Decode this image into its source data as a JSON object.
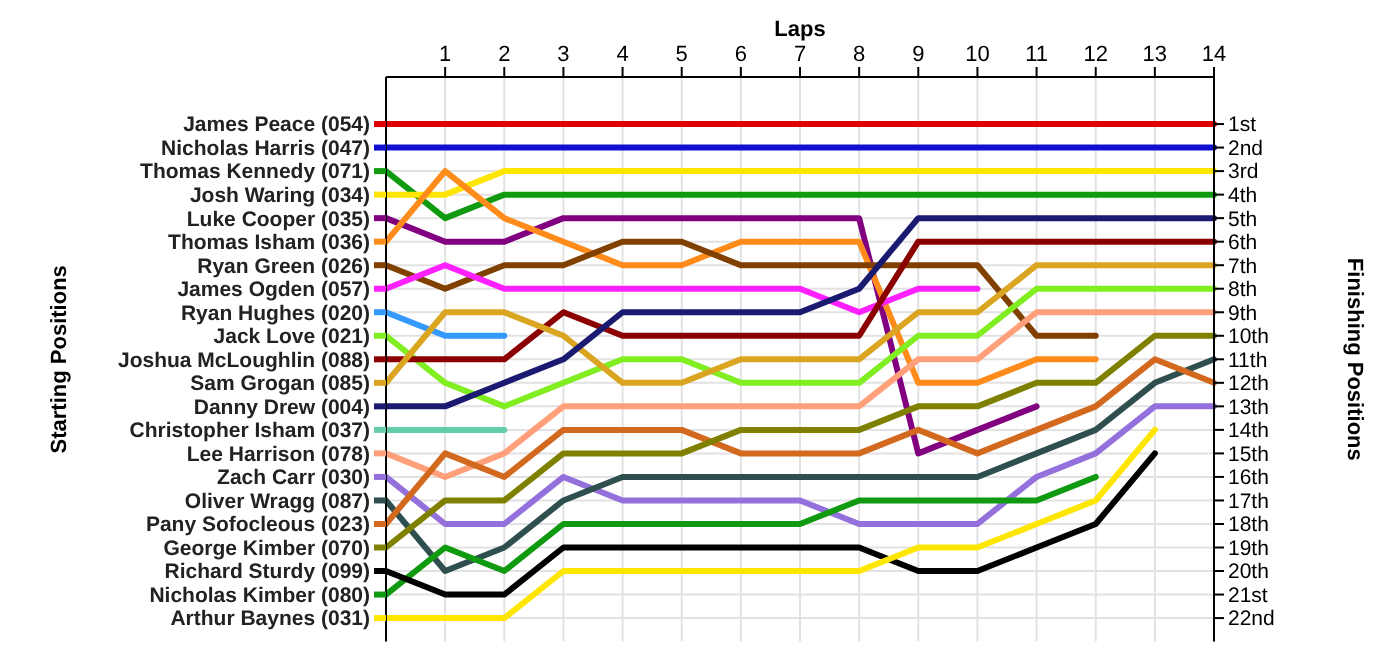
{
  "chart_data": {
    "type": "line",
    "xlabel": "Laps",
    "annotations": [
      "Starting Positions"
    ],
    "y2label": "Finishing Positions",
    "x": [
      0,
      1,
      2,
      3,
      4,
      5,
      6,
      7,
      8,
      9,
      10,
      11,
      12,
      13,
      14
    ],
    "xlim": [
      0,
      14
    ],
    "xticks": [
      1,
      2,
      3,
      4,
      5,
      6,
      7,
      8,
      9,
      10,
      11,
      12,
      13,
      14
    ],
    "y2lim": [
      23,
      -1
    ],
    "y2ticks": [
      {
        "value": 1,
        "label": "1st"
      },
      {
        "value": 2,
        "label": "2nd"
      },
      {
        "value": 3,
        "label": "3rd"
      },
      {
        "value": 4,
        "label": "4th"
      },
      {
        "value": 5,
        "label": "5th"
      },
      {
        "value": 6,
        "label": "6th"
      },
      {
        "value": 7,
        "label": "7th"
      },
      {
        "value": 8,
        "label": "8th"
      },
      {
        "value": 9,
        "label": "9th"
      },
      {
        "value": 10,
        "label": "10th"
      },
      {
        "value": 11,
        "label": "11th"
      },
      {
        "value": 12,
        "label": "12th"
      },
      {
        "value": 13,
        "label": "13th"
      },
      {
        "value": 14,
        "label": "14th"
      },
      {
        "value": 15,
        "label": "15th"
      },
      {
        "value": 16,
        "label": "16th"
      },
      {
        "value": 17,
        "label": "17th"
      },
      {
        "value": 18,
        "label": "18th"
      },
      {
        "value": 19,
        "label": "19th"
      },
      {
        "value": 20,
        "label": "20th"
      },
      {
        "value": 21,
        "label": "21st"
      },
      {
        "value": 22,
        "label": "22nd"
      }
    ],
    "grid": true,
    "legend": "left",
    "marker": "none",
    "line_style": "solid",
    "series": [
      {
        "name": "James Peace (054)",
        "axis": "y2",
        "color": "#e00000",
        "values": [
          1,
          1,
          1,
          1,
          1,
          1,
          1,
          1,
          1,
          1,
          1,
          1,
          1,
          1,
          1
        ]
      },
      {
        "name": "Nicholas Harris (047)",
        "axis": "y2",
        "color": "#1010d0",
        "values": [
          2,
          2,
          2,
          2,
          2,
          2,
          2,
          2,
          2,
          2,
          2,
          2,
          2,
          2,
          2
        ]
      },
      {
        "name": "Thomas Kennedy (071)",
        "axis": "y2",
        "color": "#109a10",
        "values": [
          3,
          5,
          4,
          4,
          4,
          4,
          4,
          4,
          4,
          4,
          4,
          4,
          4,
          4,
          4
        ]
      },
      {
        "name": "Josh Waring (034)",
        "axis": "y2",
        "color": "#ffe600",
        "values": [
          4,
          4,
          3,
          3,
          3,
          3,
          3,
          3,
          3,
          3,
          3,
          3,
          3,
          3,
          3
        ]
      },
      {
        "name": "Luke Cooper (035)",
        "axis": "y2",
        "color": "#800080",
        "values": [
          5,
          6,
          6,
          5,
          5,
          5,
          5,
          5,
          5,
          15,
          14,
          13,
          null,
          null,
          null
        ]
      },
      {
        "name": "Thomas Isham (036)",
        "axis": "y2",
        "color": "#ff8c1a",
        "values": [
          6,
          3,
          5,
          6,
          7,
          7,
          6,
          6,
          6,
          12,
          12,
          11,
          11,
          null,
          null
        ]
      },
      {
        "name": "Ryan Green (026)",
        "axis": "y2",
        "color": "#804000",
        "values": [
          7,
          8,
          7,
          7,
          6,
          6,
          7,
          7,
          7,
          7,
          7,
          10,
          10,
          null,
          null
        ]
      },
      {
        "name": "James Ogden (057)",
        "axis": "y2",
        "color": "#ff20ff",
        "values": [
          8,
          7,
          8,
          8,
          8,
          8,
          8,
          8,
          9,
          8,
          8,
          null,
          null,
          null,
          null
        ]
      },
      {
        "name": "Ryan Hughes (020)",
        "axis": "y2",
        "color": "#3399ff",
        "values": [
          9,
          10,
          10,
          null,
          null,
          null,
          null,
          null,
          null,
          null,
          null,
          null,
          null,
          null,
          null
        ]
      },
      {
        "name": "Jack Love (021)",
        "axis": "y2",
        "color": "#80ee20",
        "values": [
          10,
          12,
          13,
          12,
          11,
          11,
          12,
          12,
          12,
          10,
          10,
          8,
          8,
          8,
          8
        ]
      },
      {
        "name": "Joshua McLoughlin (088)",
        "axis": "y2",
        "color": "#8b0000",
        "values": [
          11,
          11,
          11,
          9,
          10,
          10,
          10,
          10,
          10,
          6,
          6,
          6,
          6,
          6,
          6
        ]
      },
      {
        "name": "Sam Grogan (085)",
        "axis": "y2",
        "color": "#daa520",
        "values": [
          12,
          9,
          9,
          10,
          12,
          12,
          11,
          11,
          11,
          9,
          9,
          7,
          7,
          7,
          7
        ]
      },
      {
        "name": "Danny Drew (004)",
        "axis": "y2",
        "color": "#1a1a70",
        "values": [
          13,
          13,
          12,
          11,
          9,
          9,
          9,
          9,
          8,
          5,
          5,
          5,
          5,
          5,
          5
        ]
      },
      {
        "name": "Christopher Isham (037)",
        "axis": "y2",
        "color": "#66cdaa",
        "values": [
          14,
          14,
          14,
          null,
          null,
          null,
          null,
          null,
          null,
          null,
          null,
          null,
          null,
          null,
          null
        ]
      },
      {
        "name": "Lee Harrison (078)",
        "axis": "y2",
        "color": "#ffa07a",
        "values": [
          15,
          16,
          15,
          13,
          13,
          13,
          13,
          13,
          13,
          11,
          11,
          9,
          9,
          9,
          9
        ]
      },
      {
        "name": "Zach Carr (030)",
        "axis": "y2",
        "color": "#9370db",
        "values": [
          16,
          18,
          18,
          16,
          17,
          17,
          17,
          17,
          18,
          18,
          18,
          16,
          15,
          13,
          13
        ]
      },
      {
        "name": "Oliver Wragg (087)",
        "axis": "y2",
        "color": "#2f4f4f",
        "values": [
          17,
          20,
          19,
          17,
          16,
          16,
          16,
          16,
          16,
          16,
          16,
          15,
          14,
          12,
          11
        ]
      },
      {
        "name": "Pany Sofocleous (023)",
        "axis": "y2",
        "color": "#d2691e",
        "values": [
          18,
          15,
          16,
          14,
          14,
          14,
          15,
          15,
          15,
          14,
          15,
          14,
          13,
          11,
          12
        ]
      },
      {
        "name": "George Kimber (070)",
        "axis": "y2",
        "color": "#808000",
        "values": [
          19,
          17,
          17,
          15,
          15,
          15,
          14,
          14,
          14,
          13,
          13,
          12,
          12,
          10,
          10
        ]
      },
      {
        "name": "Nicholas Kimber (080)",
        "axis": "y2",
        "color": "#109a10",
        "values": [
          21,
          19,
          20,
          18,
          18,
          18,
          18,
          18,
          17,
          17,
          17,
          17,
          16,
          null,
          null
        ]
      },
      {
        "name": "Richard Sturdy (099)",
        "axis": "y2",
        "color": "#000000",
        "values": [
          20,
          21,
          21,
          19,
          19,
          19,
          19,
          19,
          19,
          20,
          20,
          19,
          18,
          15,
          null
        ]
      },
      {
        "name": "Arthur Baynes (031)",
        "axis": "y2",
        "color": "#ffe600",
        "values": [
          22,
          22,
          22,
          20,
          20,
          20,
          20,
          20,
          20,
          19,
          19,
          18,
          17,
          14,
          null
        ]
      }
    ]
  }
}
